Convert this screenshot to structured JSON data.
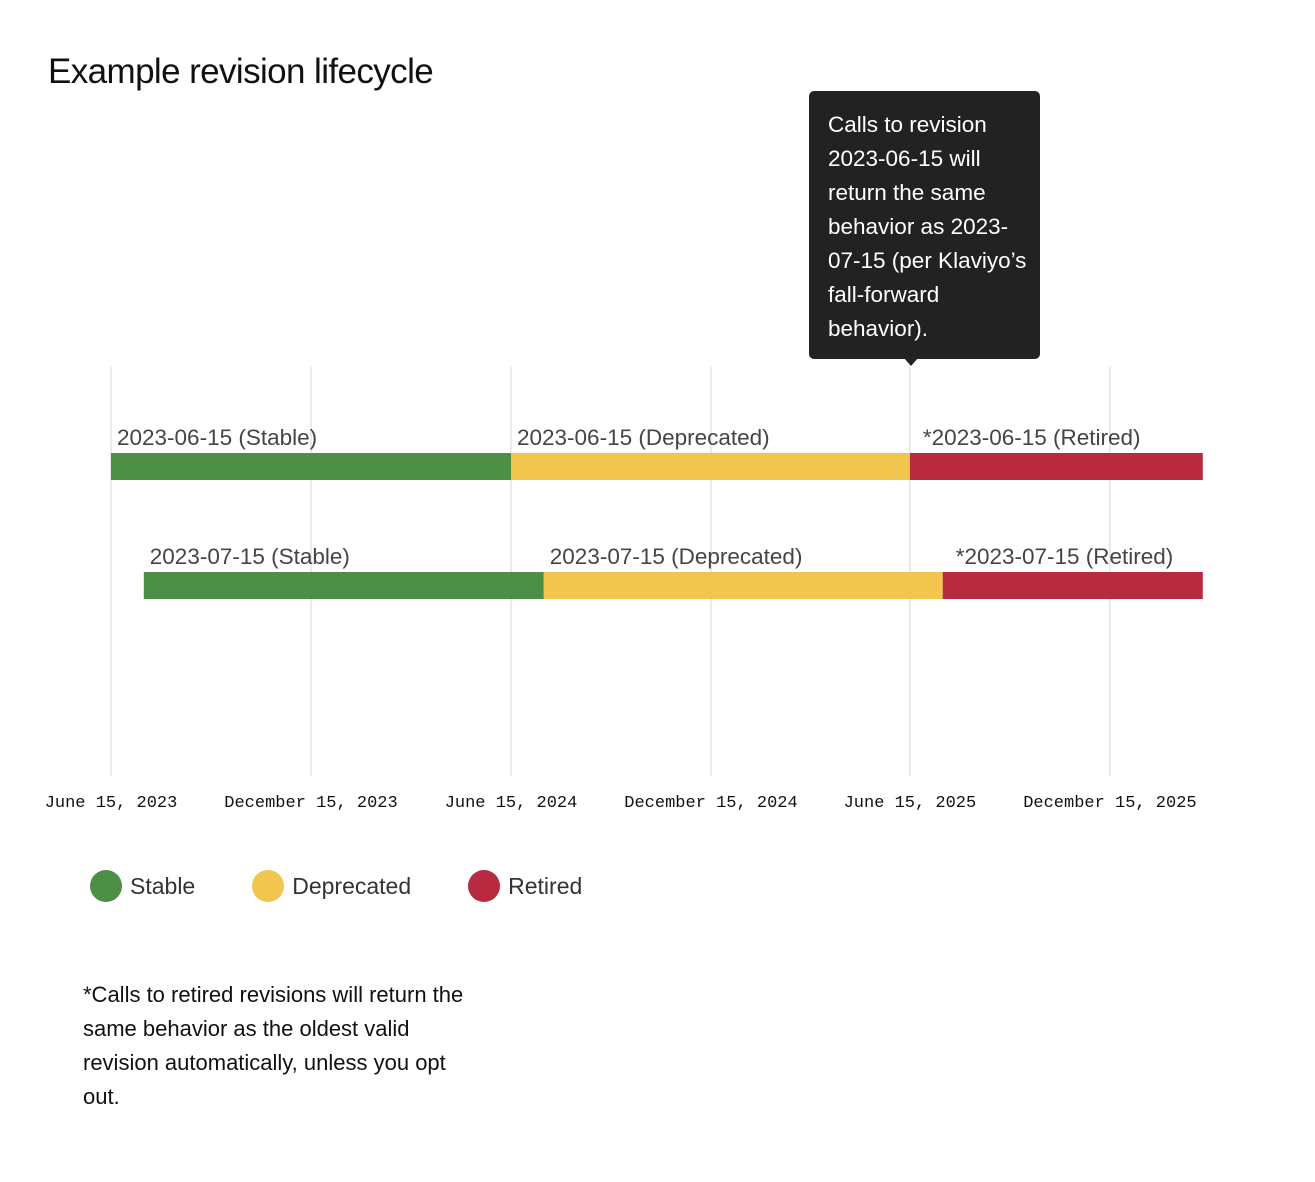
{
  "title": "Example revision lifecycle",
  "tooltip": {
    "text": "Calls to revision 2023-06-15 will return the same behavior as 2023-07-15 (per Klaviyo’s fall-forward behavior)."
  },
  "legend": [
    {
      "label": "Stable",
      "color": "#4E8F48"
    },
    {
      "label": "Deprecated",
      "color": "#F2C54F"
    },
    {
      "label": "Retired",
      "color": "#B82A40"
    }
  ],
  "footnote": "*Calls to retired revisions will return the same behavior as the oldest valid revision automatically, unless you opt out.",
  "chart_data": {
    "type": "gantt",
    "title": "Example revision lifecycle",
    "x_axis": {
      "ticks": [
        {
          "date": "2023-06-15",
          "label": "June 15, 2023"
        },
        {
          "date": "2023-12-15",
          "label": "December 15, 2023"
        },
        {
          "date": "2024-06-15",
          "label": "June 15, 2024"
        },
        {
          "date": "2024-12-15",
          "label": "December 15, 2024"
        },
        {
          "date": "2025-06-15",
          "label": "June 15, 2025"
        },
        {
          "date": "2025-12-15",
          "label": "December 15, 2025"
        }
      ],
      "range": [
        "2023-06-15",
        "2026-03-10"
      ],
      "grid": true
    },
    "rows": [
      {
        "revision": "2023-06-15",
        "segments": [
          {
            "status": "Stable",
            "start": "2023-06-15",
            "end": "2024-06-15",
            "label": "2023-06-15 (Stable)"
          },
          {
            "status": "Deprecated",
            "start": "2024-06-15",
            "end": "2025-06-15",
            "label": "2023-06-15 (Deprecated)"
          },
          {
            "status": "Retired",
            "start": "2025-06-15",
            "end": "2026-03-10",
            "label": "*2023-06-15 (Retired)"
          }
        ]
      },
      {
        "revision": "2023-07-15",
        "segments": [
          {
            "status": "Stable",
            "start": "2023-07-15",
            "end": "2024-07-15",
            "label": "2023-07-15 (Stable)"
          },
          {
            "status": "Deprecated",
            "start": "2024-07-15",
            "end": "2025-07-15",
            "label": "2023-07-15 (Deprecated)"
          },
          {
            "status": "Retired",
            "start": "2025-07-15",
            "end": "2026-03-10",
            "label": "*2023-07-15 (Retired)"
          }
        ]
      }
    ],
    "colors": {
      "Stable": "#4E8F48",
      "Deprecated": "#F2C54F",
      "Retired": "#B82A40"
    },
    "annotation": {
      "date": "2025-06-15",
      "text": "Calls to revision 2023-06-15 will return the same behavior as 2023-07-15 (per Klaviyo’s fall-forward behavior)."
    }
  }
}
